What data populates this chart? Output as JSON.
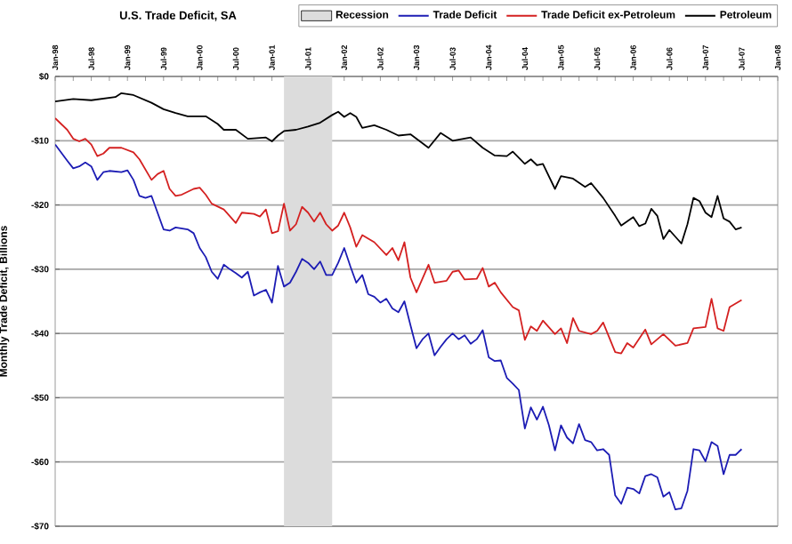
{
  "chart_data": {
    "type": "line",
    "title": "U.S. Trade Deficit, SA",
    "ylabel": "Monthly Trade Deficit, Billions",
    "xlim": [
      "1998-01",
      "2008-01"
    ],
    "ylim": [
      -70,
      0
    ],
    "xticks": [
      {
        "value": "1998-01",
        "label": "Jan-98"
      },
      {
        "value": "1998-07",
        "label": "Jul-98"
      },
      {
        "value": "1999-01",
        "label": "Jan-99"
      },
      {
        "value": "1999-07",
        "label": "Jul-99"
      },
      {
        "value": "2000-01",
        "label": "Jan-00"
      },
      {
        "value": "2000-07",
        "label": "Jul-00"
      },
      {
        "value": "2001-01",
        "label": "Jan-01"
      },
      {
        "value": "2001-07",
        "label": "Jul-01"
      },
      {
        "value": "2002-01",
        "label": "Jan-02"
      },
      {
        "value": "2002-07",
        "label": "Jul-02"
      },
      {
        "value": "2003-01",
        "label": "Jan-03"
      },
      {
        "value": "2003-07",
        "label": "Jul-03"
      },
      {
        "value": "2004-01",
        "label": "Jan-04"
      },
      {
        "value": "2004-07",
        "label": "Jul-04"
      },
      {
        "value": "2005-01",
        "label": "Jan-05"
      },
      {
        "value": "2005-07",
        "label": "Jul-05"
      },
      {
        "value": "2006-01",
        "label": "Jan-06"
      },
      {
        "value": "2006-07",
        "label": "Jul-06"
      },
      {
        "value": "2007-01",
        "label": "Jan-07"
      },
      {
        "value": "2007-07",
        "label": "Jul-07"
      },
      {
        "value": "2008-01",
        "label": "Jan-08"
      }
    ],
    "yticks": [
      {
        "value": 0,
        "label": "$0"
      },
      {
        "value": -10,
        "label": "-$10"
      },
      {
        "value": -20,
        "label": "-$20"
      },
      {
        "value": -30,
        "label": "-$30"
      },
      {
        "value": -40,
        "label": "-$40"
      },
      {
        "value": -50,
        "label": "-$50"
      },
      {
        "value": -60,
        "label": "-$60"
      },
      {
        "value": -70,
        "label": "-$70"
      }
    ],
    "bands": [
      {
        "axis": "x",
        "from": "2001-03",
        "to": "2001-11",
        "label": "Recession",
        "color": "#dcdcdc"
      }
    ],
    "grid": "y",
    "legend": "top right",
    "marker": "none",
    "line_style": "solid",
    "series": [
      {
        "name": "Trade Deficit",
        "color": "#1c1cb4",
        "x": [
          "1998-01",
          "1998-03",
          "1998-04",
          "1998-05",
          "1998-06",
          "1998-07",
          "1998-08",
          "1998-09",
          "1998-10",
          "1998-12",
          "1999-01",
          "1999-02",
          "1999-03",
          "1999-04",
          "1999-05",
          "1999-06",
          "1999-07",
          "1999-08",
          "1999-09",
          "1999-11",
          "1999-12",
          "2000-01",
          "2000-02",
          "2000-03",
          "2000-04",
          "2000-05",
          "2000-06",
          "2000-07",
          "2000-08",
          "2000-09",
          "2000-10",
          "2000-11",
          "2000-12",
          "2001-01",
          "2001-02",
          "2001-03",
          "2001-04",
          "2001-05",
          "2001-06",
          "2001-07",
          "2001-08",
          "2001-09",
          "2001-10",
          "2001-11",
          "2001-12",
          "2002-01",
          "2002-02",
          "2002-03",
          "2002-04",
          "2002-05",
          "2002-06",
          "2002-07",
          "2002-08",
          "2002-09",
          "2002-10",
          "2002-11",
          "2002-12",
          "2003-01",
          "2003-02",
          "2003-03",
          "2003-04",
          "2003-05",
          "2003-06",
          "2003-07",
          "2003-08",
          "2003-09",
          "2003-10",
          "2003-11",
          "2003-12",
          "2004-01",
          "2004-02",
          "2004-03",
          "2004-04",
          "2004-05",
          "2004-06",
          "2004-07",
          "2004-08",
          "2004-09",
          "2004-10",
          "2004-11",
          "2004-12",
          "2005-01",
          "2005-02",
          "2005-03",
          "2005-04",
          "2005-05",
          "2005-06",
          "2005-07",
          "2005-08",
          "2005-09",
          "2005-10",
          "2005-11",
          "2005-12",
          "2006-01",
          "2006-02",
          "2006-03",
          "2006-04",
          "2006-05",
          "2006-06",
          "2006-07",
          "2006-08",
          "2006-09",
          "2006-10",
          "2006-11",
          "2006-12",
          "2007-01",
          "2007-02",
          "2007-03",
          "2007-04",
          "2007-05",
          "2007-06",
          "2007-07"
        ],
        "values": [
          -10.6,
          -13.1,
          -14.3,
          -14.0,
          -13.4,
          -14.0,
          -16.1,
          -14.9,
          -14.7,
          -14.9,
          -14.6,
          -16.1,
          -18.6,
          -18.9,
          -18.6,
          -21.2,
          -23.8,
          -24.0,
          -23.5,
          -23.8,
          -24.4,
          -26.7,
          -28.1,
          -30.4,
          -31.5,
          -29.3,
          -30.0,
          -30.6,
          -31.3,
          -30.4,
          -34.1,
          -33.6,
          -33.2,
          -35.2,
          -29.5,
          -32.7,
          -32.1,
          -30.4,
          -28.4,
          -29.0,
          -30.0,
          -28.8,
          -30.9,
          -30.9,
          -29.0,
          -26.7,
          -29.5,
          -32.1,
          -30.9,
          -33.9,
          -34.3,
          -35.2,
          -34.6,
          -36.1,
          -36.7,
          -35.0,
          -38.7,
          -42.3,
          -40.9,
          -40.0,
          -43.4,
          -42.1,
          -40.9,
          -40.0,
          -40.9,
          -40.3,
          -41.6,
          -40.9,
          -39.5,
          -43.7,
          -44.3,
          -44.2,
          -46.9,
          -47.8,
          -48.8,
          -54.8,
          -51.5,
          -53.4,
          -51.4,
          -54.3,
          -58.2,
          -54.3,
          -56.2,
          -57.1,
          -54.1,
          -56.6,
          -56.9,
          -58.2,
          -58.0,
          -58.9,
          -65.2,
          -66.5,
          -64.0,
          -64.2,
          -64.9,
          -62.2,
          -61.9,
          -62.4,
          -65.4,
          -64.7,
          -67.4,
          -67.2,
          -64.5,
          -58.0,
          -58.2,
          -59.9,
          -56.9,
          -57.5,
          -61.9,
          -58.9,
          -58.9,
          -58.0
        ]
      },
      {
        "name": "Trade Deficit ex-Petroleum",
        "color": "#d42020",
        "x": [
          "1998-01",
          "1998-03",
          "1998-04",
          "1998-05",
          "1998-06",
          "1998-07",
          "1998-08",
          "1998-09",
          "1998-10",
          "1998-12",
          "1999-02",
          "1999-03",
          "1999-05",
          "1999-06",
          "1999-07",
          "1999-08",
          "1999-09",
          "1999-10",
          "1999-12",
          "2000-01",
          "2000-02",
          "2000-03",
          "2000-05",
          "2000-07",
          "2000-08",
          "2000-10",
          "2000-11",
          "2000-12",
          "2001-01",
          "2001-02",
          "2001-03",
          "2001-04",
          "2001-05",
          "2001-06",
          "2001-07",
          "2001-08",
          "2001-09",
          "2001-10",
          "2001-11",
          "2001-12",
          "2002-01",
          "2002-02",
          "2002-03",
          "2002-04",
          "2002-06",
          "2002-08",
          "2002-09",
          "2002-10",
          "2002-11",
          "2002-12",
          "2003-01",
          "2003-03",
          "2003-04",
          "2003-06",
          "2003-07",
          "2003-08",
          "2003-09",
          "2003-11",
          "2003-12",
          "2004-01",
          "2004-02",
          "2004-03",
          "2004-05",
          "2004-06",
          "2004-07",
          "2004-08",
          "2004-09",
          "2004-10",
          "2004-12",
          "2005-01",
          "2005-02",
          "2005-03",
          "2005-04",
          "2005-06",
          "2005-07",
          "2005-08",
          "2005-10",
          "2005-11",
          "2005-12",
          "2006-01",
          "2006-03",
          "2006-04",
          "2006-06",
          "2006-08",
          "2006-10",
          "2006-11",
          "2007-01",
          "2007-02",
          "2007-03",
          "2007-04",
          "2007-05",
          "2007-07"
        ],
        "values": [
          -6.5,
          -8.3,
          -9.7,
          -10.1,
          -9.7,
          -10.6,
          -12.4,
          -12.0,
          -11.1,
          -11.1,
          -11.8,
          -12.9,
          -16.1,
          -15.2,
          -14.7,
          -17.5,
          -18.6,
          -18.4,
          -17.5,
          -17.3,
          -18.4,
          -19.8,
          -20.7,
          -22.8,
          -21.2,
          -21.4,
          -21.8,
          -20.7,
          -24.4,
          -24.1,
          -19.8,
          -24.0,
          -23.0,
          -20.3,
          -21.2,
          -22.6,
          -21.2,
          -23.0,
          -24.0,
          -23.2,
          -21.2,
          -23.5,
          -26.5,
          -24.7,
          -25.8,
          -27.8,
          -26.7,
          -28.6,
          -25.8,
          -31.3,
          -33.6,
          -29.3,
          -32.1,
          -31.8,
          -30.4,
          -30.2,
          -31.6,
          -31.5,
          -29.8,
          -32.7,
          -32.1,
          -33.6,
          -35.9,
          -36.4,
          -41.0,
          -38.9,
          -39.6,
          -38.0,
          -40.1,
          -39.2,
          -41.5,
          -37.6,
          -39.6,
          -40.1,
          -39.6,
          -38.3,
          -42.9,
          -43.1,
          -41.5,
          -42.2,
          -39.4,
          -41.7,
          -40.1,
          -41.9,
          -41.5,
          -39.2,
          -39.0,
          -34.6,
          -39.2,
          -39.6,
          -35.9,
          -34.8
        ]
      },
      {
        "name": "Petroleum",
        "color": "#000000",
        "x": [
          "1998-01",
          "1998-04",
          "1998-07",
          "1998-11",
          "1998-12",
          "1999-02",
          "1999-05",
          "1999-07",
          "1999-09",
          "1999-11",
          "2000-02",
          "2000-04",
          "2000-05",
          "2000-07",
          "2000-09",
          "2000-12",
          "2001-01",
          "2001-02",
          "2001-03",
          "2001-05",
          "2001-07",
          "2001-09",
          "2001-11",
          "2001-12",
          "2002-01",
          "2002-02",
          "2002-03",
          "2002-04",
          "2002-06",
          "2002-08",
          "2002-10",
          "2002-12",
          "2003-03",
          "2003-05",
          "2003-07",
          "2003-10",
          "2003-12",
          "2004-02",
          "2004-04",
          "2004-05",
          "2004-07",
          "2004-08",
          "2004-09",
          "2004-10",
          "2004-12",
          "2005-01",
          "2005-03",
          "2005-05",
          "2005-06",
          "2005-08",
          "2005-10",
          "2005-11",
          "2006-01",
          "2006-02",
          "2006-03",
          "2006-04",
          "2006-05",
          "2006-06",
          "2006-07",
          "2006-09",
          "2006-10",
          "2006-11",
          "2006-12",
          "2007-01",
          "2007-02",
          "2007-03",
          "2007-04",
          "2007-05",
          "2007-06",
          "2007-07"
        ],
        "values": [
          -3.9,
          -3.5,
          -3.7,
          -3.2,
          -2.6,
          -2.9,
          -4.1,
          -5.1,
          -5.7,
          -6.2,
          -6.2,
          -7.4,
          -8.3,
          -8.3,
          -9.7,
          -9.5,
          -10.1,
          -9.2,
          -8.5,
          -8.3,
          -7.8,
          -7.2,
          -6.0,
          -5.5,
          -6.3,
          -5.7,
          -6.3,
          -8.0,
          -7.6,
          -8.3,
          -9.2,
          -9.0,
          -11.1,
          -8.8,
          -10.0,
          -9.5,
          -11.1,
          -12.3,
          -12.4,
          -11.7,
          -13.6,
          -12.9,
          -13.8,
          -13.6,
          -17.5,
          -15.5,
          -15.9,
          -17.2,
          -16.6,
          -18.9,
          -21.7,
          -23.2,
          -21.9,
          -23.3,
          -22.9,
          -20.6,
          -21.7,
          -25.3,
          -23.9,
          -26.0,
          -23.0,
          -18.9,
          -19.4,
          -21.2,
          -21.9,
          -18.6,
          -22.1,
          -22.6,
          -23.8,
          -23.5
        ]
      }
    ]
  }
}
